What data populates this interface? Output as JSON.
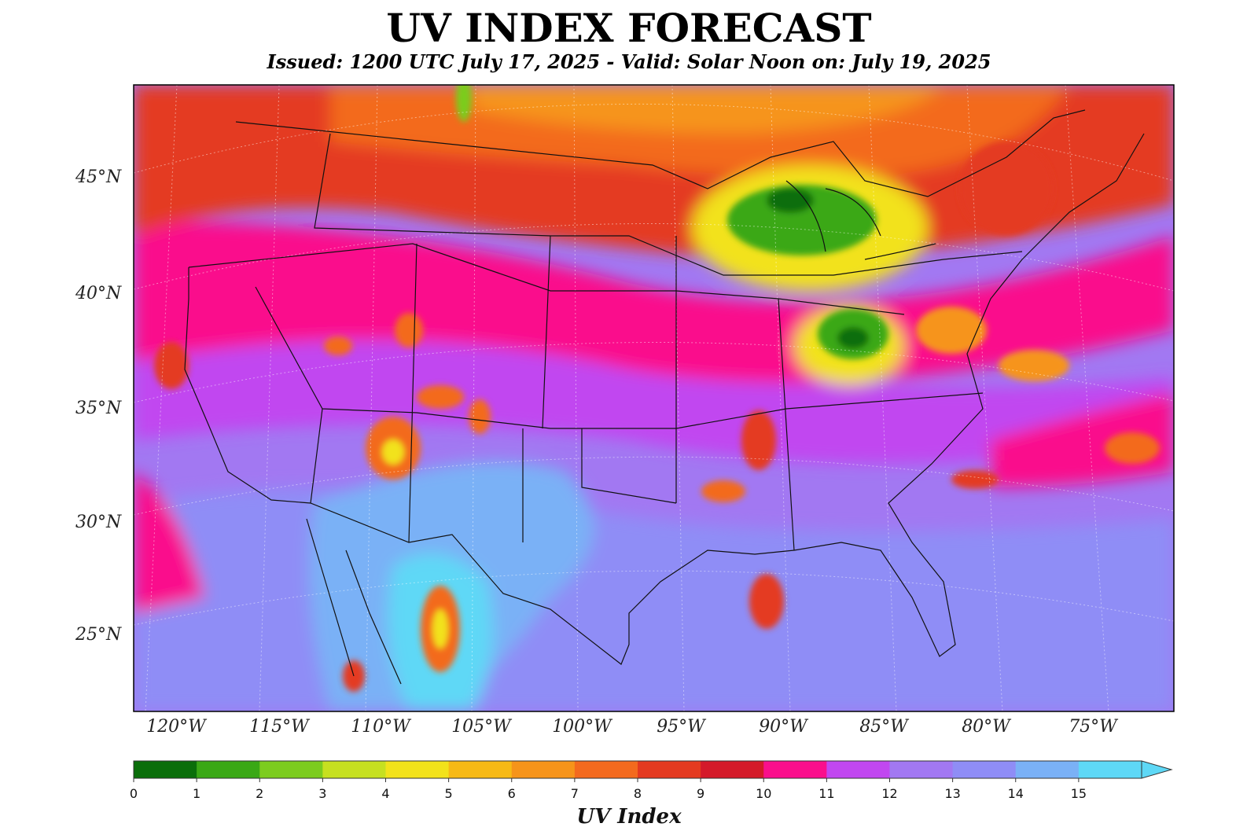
{
  "title": "UV INDEX FORECAST",
  "subtitle": "Issued: 1200 UTC July 17, 2025 - Valid: Solar Noon on: July 19, 2025",
  "lat_labels": [
    "45°N",
    "40°N",
    "35°N",
    "30°N",
    "25°N"
  ],
  "lon_labels": [
    "120°W",
    "115°W",
    "110°W",
    "105°W",
    "100°W",
    "95°W",
    "90°W",
    "85°W",
    "80°W",
    "75°W"
  ],
  "colorbar": {
    "label": "UV Index",
    "ticks": [
      "0",
      "1",
      "2",
      "3",
      "4",
      "5",
      "6",
      "7",
      "8",
      "9",
      "10",
      "11",
      "12",
      "13",
      "14",
      "15"
    ],
    "colors": [
      "#0a6e0a",
      "#3aa815",
      "#7ccc1e",
      "#c6e020",
      "#f2e21a",
      "#f7b915",
      "#f6941a",
      "#f36a1e",
      "#e43a20",
      "#d41a2a",
      "#fa0f8c",
      "#c147f0",
      "#a278f2",
      "#8f8df6",
      "#7ab1f6",
      "#5ed8f6"
    ]
  },
  "regions": {
    "lakes_green": "#3aa815",
    "yellow": "#f2e21a",
    "orange": "#f6941a",
    "red_orange": "#f36a1e",
    "red": "#e43a20",
    "magenta": "#fa0f8c",
    "violet": "#c147f0",
    "lavender": "#a278f2",
    "periwinkle": "#8f8df6",
    "sky": "#7ab1f6",
    "cyan": "#5ed8f6"
  }
}
